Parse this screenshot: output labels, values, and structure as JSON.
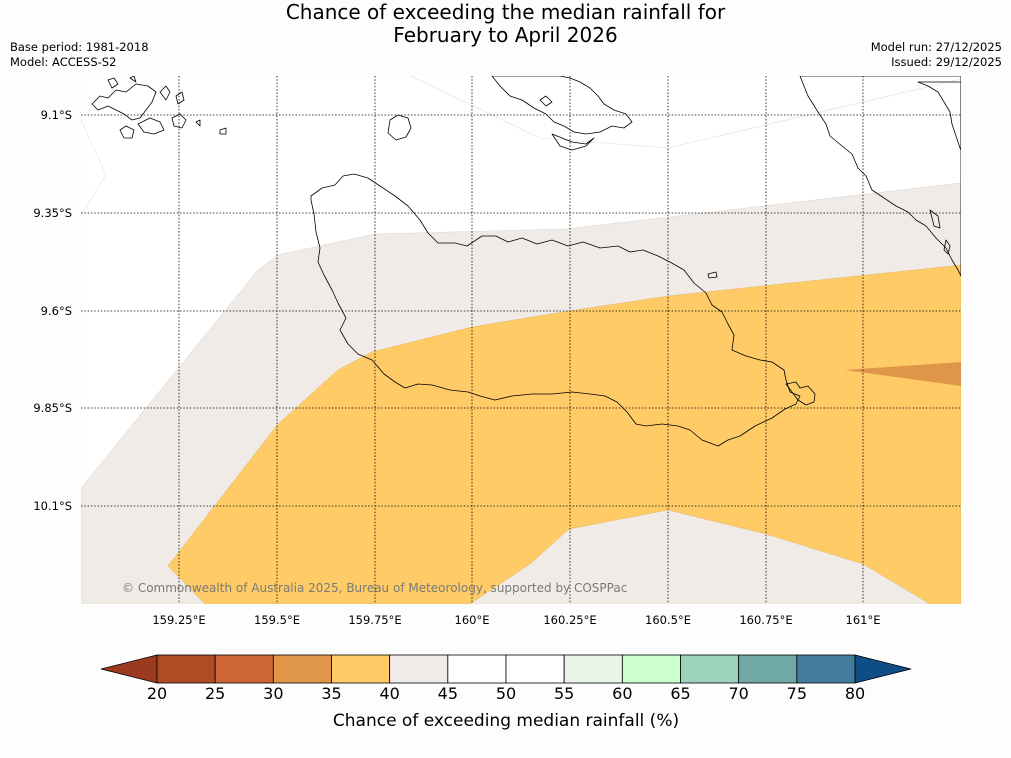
{
  "title": {
    "line1": "Chance of exceeding the median rainfall for",
    "line2": "February to April 2026"
  },
  "meta": {
    "base_period": "Base period: 1981-2018",
    "model": "Model: ACCESS-S2",
    "model_run": "Model run: 27/12/2025",
    "issued": "Issued: 29/12/2025"
  },
  "map": {
    "lat_labels": [
      "9.1°S",
      "9.35°S",
      "9.6°S",
      "9.85°S",
      "10.1°S"
    ],
    "lon_labels": [
      "159.25°E",
      "159.5°E",
      "159.75°E",
      "160°E",
      "160.25°E",
      "160.5°E",
      "160.75°E",
      "161°E"
    ],
    "copyright": "© Commonwealth of Australia 2025, Bureau of Meteorology, supported by COSPPac",
    "colors": {
      "band_40_45": "#f0ebe6",
      "band_35_40": "#fecb66",
      "band_30_35": "#e09648",
      "coast": "#000000",
      "grid": "#000000"
    }
  },
  "colorbar": {
    "label": "Chance of exceeding median rainfall (%)",
    "ticks": [
      "20",
      "25",
      "30",
      "35",
      "40",
      "45",
      "50",
      "55",
      "60",
      "65",
      "70",
      "75",
      "80"
    ],
    "low_extend_color": "#9c3a1f",
    "high_extend_color": "#0e4d86",
    "bins": [
      {
        "range": "20-25",
        "color": "#b04c25"
      },
      {
        "range": "25-30",
        "color": "#cc6633"
      },
      {
        "range": "30-35",
        "color": "#e09648"
      },
      {
        "range": "35-40",
        "color": "#fecb66"
      },
      {
        "range": "40-45",
        "color": "#f0ebe6"
      },
      {
        "range": "45-50",
        "color": "#ffffff"
      },
      {
        "range": "50-55",
        "color": "#ffffff"
      },
      {
        "range": "55-60",
        "color": "#e9f5e9"
      },
      {
        "range": "60-65",
        "color": "#ccffcc"
      },
      {
        "range": "65-70",
        "color": "#9dd2bb"
      },
      {
        "range": "70-75",
        "color": "#70a8a8"
      },
      {
        "range": "75-80",
        "color": "#427d9f"
      }
    ]
  }
}
